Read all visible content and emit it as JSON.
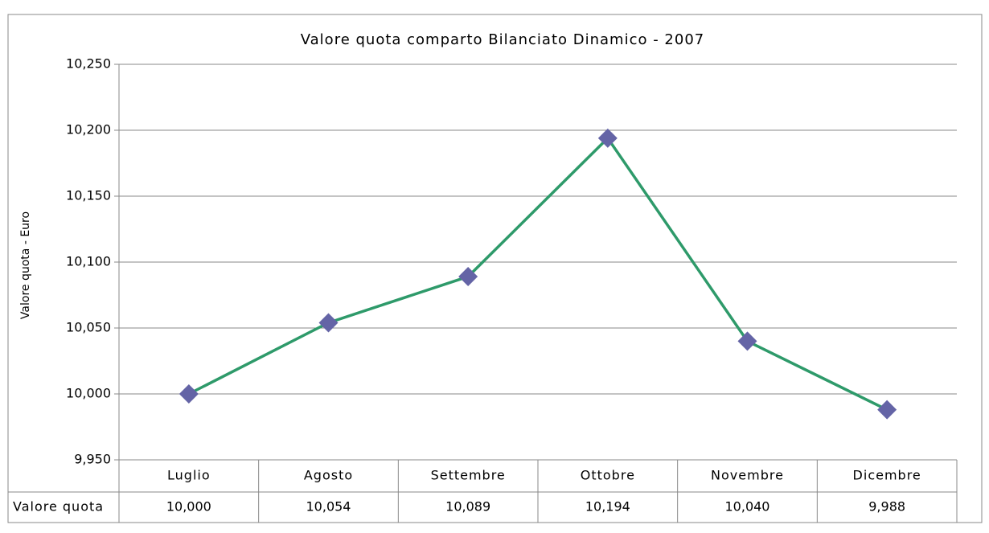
{
  "chart_data": {
    "type": "line",
    "title": "Valore quota comparto Bilanciato Dinamico - 2007",
    "y_label": "Valore quota - Euro",
    "categories": [
      "Luglio",
      "Agosto",
      "Settembre",
      "Ottobre",
      "Novembre",
      "Dicembre"
    ],
    "series": [
      {
        "name": "Valore quota",
        "color": "#2e9a6a",
        "marker_color": "#6464a6",
        "values": [
          10.0,
          10.054,
          10.089,
          10.194,
          10.04,
          9.988
        ],
        "value_labels": [
          "10,000",
          "10,054",
          "10,089",
          "10,194",
          "10,040",
          "9,988"
        ]
      }
    ],
    "ylim": [
      9.95,
      10.25
    ],
    "yticks": [
      {
        "value": 9.95,
        "label": "9,950"
      },
      {
        "value": 10.0,
        "label": "10,000"
      },
      {
        "value": 10.05,
        "label": "10,050"
      },
      {
        "value": 10.1,
        "label": "10,100"
      },
      {
        "value": 10.15,
        "label": "10,150"
      },
      {
        "value": 10.2,
        "label": "10,200"
      },
      {
        "value": 10.25,
        "label": "10,250"
      }
    ],
    "grid": true,
    "data_table": true
  }
}
